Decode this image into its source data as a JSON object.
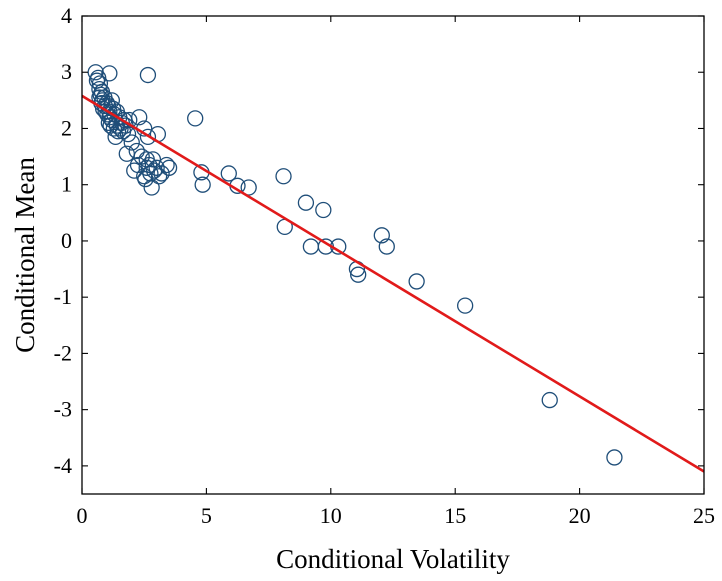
{
  "chart_data": {
    "type": "scatter",
    "title": "",
    "xlabel": "Conditional Volatility",
    "ylabel": "Conditional Mean",
    "xlim": [
      0,
      25
    ],
    "ylim": [
      -4.5,
      4
    ],
    "xticks": [
      0,
      5,
      10,
      15,
      20,
      25
    ],
    "yticks": [
      4,
      3,
      2,
      1,
      0,
      -1,
      -2,
      -3,
      -4
    ],
    "ytick_labels": [
      "4",
      "3",
      "2",
      "1",
      "0",
      "-1",
      "-2",
      "-3",
      "-4"
    ],
    "grid": false,
    "legend": "none",
    "colors": {
      "marker": "#1f4e79",
      "fit_line": "#e11a1a",
      "axes": "#000000"
    },
    "series": [
      {
        "kind": "markers",
        "marker": "open-circle",
        "x": [
          0.55,
          0.6,
          0.65,
          0.7,
          0.7,
          0.72,
          0.75,
          0.78,
          0.8,
          0.82,
          0.85,
          0.9,
          0.92,
          0.95,
          1.0,
          1.02,
          1.05,
          1.08,
          1.1,
          1.12,
          1.15,
          1.2,
          1.2,
          1.25,
          1.28,
          1.3,
          1.35,
          1.4,
          1.4,
          1.45,
          1.5,
          1.55,
          1.6,
          1.65,
          1.7,
          1.75,
          1.8,
          1.85,
          1.9,
          2.0,
          2.1,
          2.2,
          2.25,
          2.3,
          2.4,
          2.5,
          2.5,
          2.55,
          2.6,
          2.6,
          2.65,
          2.7,
          2.75,
          2.8,
          2.85,
          2.9,
          3.0,
          3.05,
          3.1,
          3.2,
          3.4,
          3.5,
          1.1,
          2.65,
          4.55,
          4.8,
          4.85,
          5.9,
          6.25,
          6.7,
          8.15,
          8.1,
          9.0,
          9.2,
          9.7,
          9.8,
          10.3,
          11.05,
          11.1,
          12.05,
          12.25,
          13.45,
          15.4,
          18.8,
          21.4
        ],
        "y": [
          3.0,
          2.85,
          2.9,
          2.7,
          2.55,
          2.8,
          2.6,
          2.45,
          2.65,
          2.5,
          2.35,
          2.55,
          2.4,
          2.3,
          2.45,
          2.25,
          2.4,
          2.1,
          2.3,
          2.2,
          2.05,
          2.15,
          2.5,
          2.35,
          2.0,
          2.25,
          1.85,
          2.3,
          2.05,
          1.95,
          2.2,
          2.0,
          2.1,
          1.95,
          2.15,
          2.05,
          1.55,
          1.9,
          2.15,
          1.75,
          1.25,
          1.6,
          1.35,
          2.2,
          1.5,
          1.15,
          2.0,
          1.1,
          1.3,
          1.45,
          1.85,
          1.35,
          1.2,
          0.95,
          1.45,
          1.25,
          1.3,
          1.9,
          1.15,
          1.2,
          1.35,
          1.3,
          2.98,
          2.95,
          2.18,
          1.22,
          1.0,
          1.2,
          0.98,
          0.95,
          0.25,
          1.15,
          0.68,
          -0.1,
          0.55,
          -0.1,
          -0.1,
          -0.5,
          -0.6,
          0.1,
          -0.1,
          -0.72,
          -1.15,
          -2.83,
          -3.85
        ]
      },
      {
        "kind": "line",
        "x": [
          0,
          25
        ],
        "y": [
          2.58,
          -4.1
        ]
      }
    ]
  }
}
